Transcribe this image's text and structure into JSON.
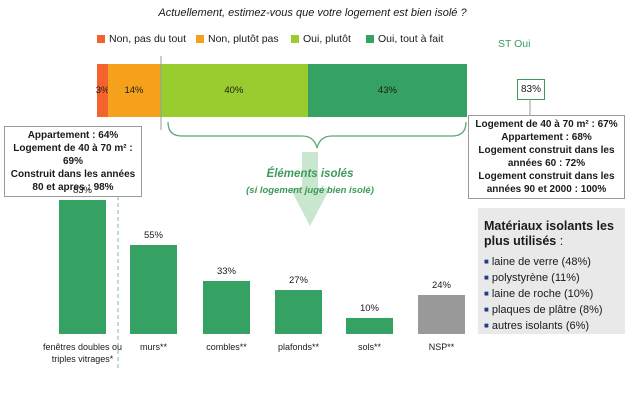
{
  "question": "Actuellement, estimez-vous que votre logement est bien isolé ?",
  "legend": [
    {
      "label": "Non, pas du tout",
      "color": "#f2632d"
    },
    {
      "label": "Non, plutôt pas",
      "color": "#f5a11c"
    },
    {
      "label": "Oui, plutôt",
      "color": "#99cc2e"
    },
    {
      "label": "Oui, tout à fait",
      "color": "#35a263"
    }
  ],
  "st_oui": {
    "title": "ST Oui",
    "value": "83%"
  },
  "left_info": {
    "line1_label": "Appartement : ",
    "line1_value": "64%",
    "line2_label": "Logement de 40 à 70 m² : ",
    "line2_value": "69%",
    "line3_label": "Construit dans les années 80 et apres : ",
    "line3_value": "98%"
  },
  "right_info": {
    "line1_label": "Logement de 40 à 70 m² : ",
    "line1_value": "67%",
    "line2_label": "Appartement : ",
    "line2_value": "68%",
    "line3_label": "Logement construit dans les années 60 : ",
    "line3_value": "72%",
    "line4_label": "Logement construit dans les années 90 et 2000 : ",
    "line4_value": "100%"
  },
  "elements": {
    "title": "Éléments isolés",
    "subtitle": "(si logement jugé bien isolé)"
  },
  "materials": {
    "title": "Matériaux isolants les plus utilisés",
    "title_suffix": " :",
    "items": [
      "laine de verre (48%)",
      "polystyrène (11%)",
      "laine de roche (10%)",
      "plaques de plâtre (8%)",
      "autres isolants (6%)"
    ]
  },
  "chart_data": [
    {
      "type": "bar",
      "orientation": "horizontal-stacked",
      "series": [
        {
          "name": "Non, pas du tout",
          "values": [
            3
          ],
          "label": "3%"
        },
        {
          "name": "Non, plutôt pas",
          "values": [
            14
          ],
          "label": "14%"
        },
        {
          "name": "Oui, plutôt",
          "values": [
            40
          ],
          "label": "40%"
        },
        {
          "name": "Oui, tout à fait",
          "values": [
            43
          ],
          "label": "43%"
        }
      ]
    },
    {
      "type": "bar",
      "categories": [
        "fenêtres doubles ou triples vitrages*",
        "murs**",
        "combles**",
        "plafonds**",
        "sols**",
        "NSP**"
      ],
      "values": [
        83,
        55,
        33,
        27,
        10,
        24
      ],
      "labels": [
        "83%",
        "55%",
        "33%",
        "27%",
        "10%",
        "24%"
      ],
      "colors": [
        "#35a263",
        "#35a263",
        "#35a263",
        "#35a263",
        "#35a263",
        "#999999"
      ],
      "ylim": [
        0,
        100
      ]
    }
  ]
}
